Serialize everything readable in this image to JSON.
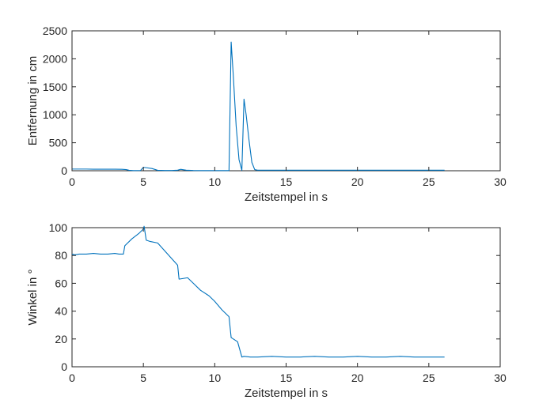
{
  "figure": {
    "background": "#ffffff",
    "axis_color": "#262626",
    "line_color": "#0072BD"
  },
  "chart_data": [
    {
      "type": "line",
      "title": "",
      "xlabel": "Zeitstempel in s",
      "ylabel": "Entfernung in cm",
      "xlim": [
        0,
        30
      ],
      "ylim": [
        0,
        2500
      ],
      "xticks": [
        0,
        5,
        10,
        15,
        20,
        25,
        30
      ],
      "yticks": [
        0,
        500,
        1000,
        1500,
        2000,
        2500
      ],
      "xtick_labels": [
        "0",
        "5",
        "10",
        "15",
        "20",
        "25",
        "30"
      ],
      "ytick_labels": [
        "0",
        "500",
        "1000",
        "1500",
        "2000",
        "2500"
      ],
      "grid": false,
      "series": [
        {
          "color": "#0072BD",
          "x": [
            0,
            0.5,
            1,
            1.5,
            2,
            2.5,
            3,
            3.5,
            3.8,
            4.0,
            4.3,
            4.8,
            5.0,
            5.2,
            5.6,
            6.0,
            6.5,
            7.0,
            7.4,
            7.6,
            8.0,
            8.5,
            9.0,
            9.5,
            10.0,
            10.5,
            10.8,
            11.0,
            11.15,
            11.3,
            11.5,
            11.7,
            11.9,
            12.05,
            12.2,
            12.4,
            12.6,
            12.8,
            13.0,
            13.5,
            14,
            15,
            16,
            17,
            18,
            19,
            20,
            21,
            22,
            23,
            24,
            25,
            26.1
          ],
          "y": [
            30,
            30,
            30,
            28,
            28,
            28,
            27,
            25,
            20,
            8,
            3,
            5,
            60,
            55,
            40,
            8,
            5,
            5,
            10,
            25,
            10,
            5,
            3,
            3,
            3,
            3,
            3,
            3,
            2300,
            1700,
            800,
            200,
            8,
            1280,
            1000,
            550,
            150,
            20,
            10,
            10,
            10,
            10,
            10,
            10,
            10,
            10,
            10,
            10,
            10,
            10,
            10,
            10,
            10
          ]
        }
      ]
    },
    {
      "type": "line",
      "title": "",
      "xlabel": "Zeitstempel in s",
      "ylabel": "Winkel in °",
      "xlim": [
        0,
        30
      ],
      "ylim": [
        0,
        100
      ],
      "xticks": [
        0,
        5,
        10,
        15,
        20,
        25,
        30
      ],
      "yticks": [
        0,
        20,
        40,
        60,
        80,
        100
      ],
      "xtick_labels": [
        "0",
        "5",
        "10",
        "15",
        "20",
        "25",
        "30"
      ],
      "ytick_labels": [
        "0",
        "20",
        "40",
        "60",
        "80",
        "100"
      ],
      "grid": false,
      "series": [
        {
          "color": "#0072BD",
          "x": [
            0,
            0.2,
            0.5,
            1.0,
            1.5,
            2.0,
            2.5,
            3.0,
            3.3,
            3.6,
            3.7,
            4.2,
            4.7,
            5.0,
            5.05,
            5.2,
            5.5,
            6.0,
            7.4,
            7.5,
            8.1,
            8.5,
            9.0,
            9.6,
            10.0,
            10.5,
            10.8,
            11.0,
            11.15,
            11.6,
            11.9,
            12.05,
            12.5,
            13.0,
            14,
            15,
            16,
            17,
            18,
            19,
            20,
            21,
            22,
            23,
            24,
            25,
            26.1
          ],
          "y": [
            81,
            80.5,
            81,
            81,
            81.5,
            81,
            81,
            81.5,
            81,
            81,
            87,
            92,
            96,
            99,
            101,
            91,
            90,
            89,
            73,
            63,
            64,
            60,
            55,
            51,
            47,
            41,
            38,
            36,
            21,
            18,
            7,
            7.5,
            7,
            7,
            7.5,
            7,
            7,
            7.5,
            7,
            7,
            7.5,
            7,
            7,
            7.5,
            7,
            7,
            7
          ]
        }
      ]
    }
  ]
}
